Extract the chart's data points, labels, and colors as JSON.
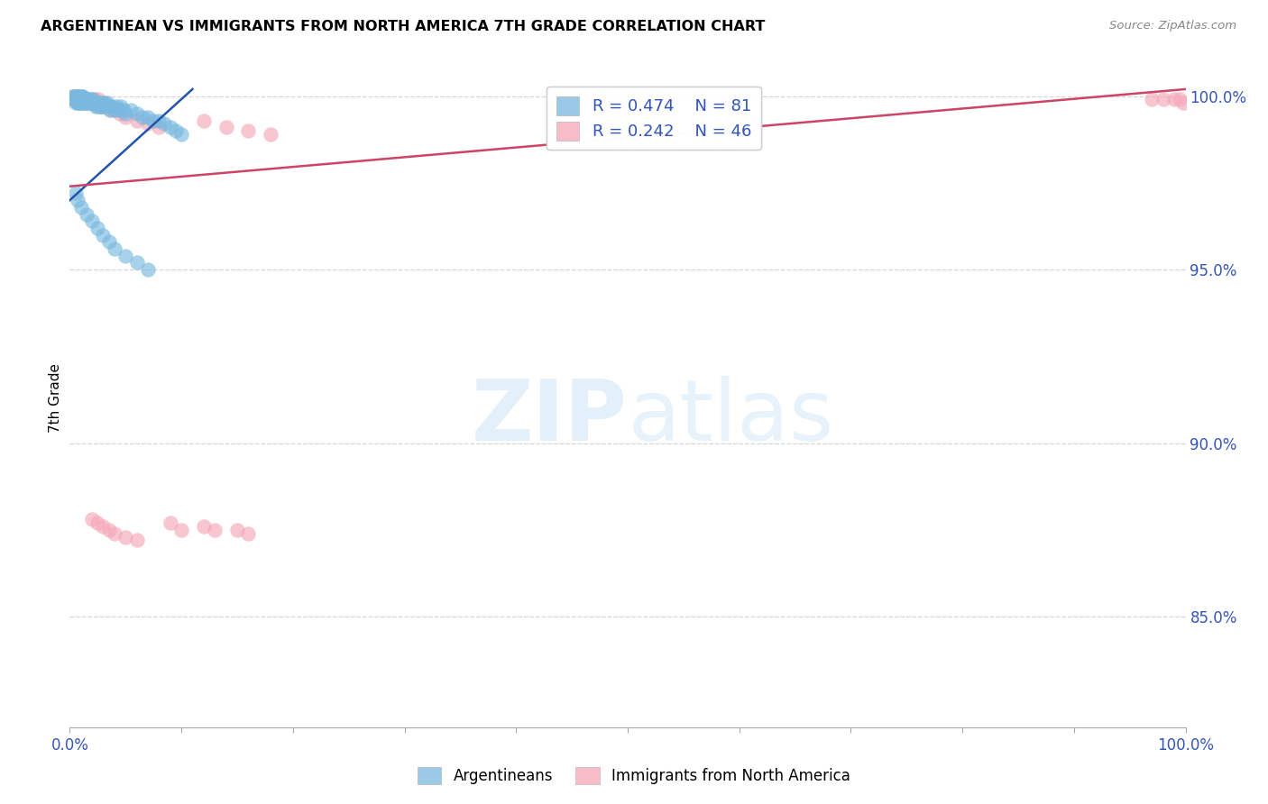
{
  "title": "ARGENTINEAN VS IMMIGRANTS FROM NORTH AMERICA 7TH GRADE CORRELATION CHART",
  "source": "Source: ZipAtlas.com",
  "ylabel": "7th Grade",
  "xlim": [
    0.0,
    1.0
  ],
  "ylim": [
    0.818,
    1.008
  ],
  "yticks": [
    0.85,
    0.9,
    0.95,
    1.0
  ],
  "ytick_labels": [
    "85.0%",
    "90.0%",
    "95.0%",
    "100.0%"
  ],
  "xtick_vals": [
    0.0,
    0.1,
    0.2,
    0.3,
    0.4,
    0.5,
    0.6,
    0.7,
    0.8,
    0.9,
    1.0
  ],
  "xtick_labels": [
    "0.0%",
    "",
    "",
    "",
    "",
    "",
    "",
    "",
    "",
    "",
    "100.0%"
  ],
  "blue_color": "#7ab9e0",
  "pink_color": "#f5a8b8",
  "blue_line_color": "#2255aa",
  "pink_line_color": "#cc4466",
  "grid_color": "#cccccc",
  "blue_line_x": [
    0.0,
    0.11
  ],
  "blue_line_y": [
    0.97,
    1.002
  ],
  "pink_line_x": [
    0.0,
    1.0
  ],
  "pink_line_y": [
    0.974,
    1.002
  ],
  "blue_x": [
    0.002,
    0.003,
    0.004,
    0.004,
    0.005,
    0.005,
    0.005,
    0.006,
    0.006,
    0.007,
    0.007,
    0.007,
    0.008,
    0.008,
    0.008,
    0.009,
    0.009,
    0.009,
    0.01,
    0.01,
    0.01,
    0.011,
    0.011,
    0.012,
    0.012,
    0.013,
    0.013,
    0.014,
    0.014,
    0.015,
    0.015,
    0.016,
    0.016,
    0.017,
    0.018,
    0.019,
    0.02,
    0.021,
    0.022,
    0.023,
    0.024,
    0.025,
    0.026,
    0.027,
    0.028,
    0.029,
    0.03,
    0.031,
    0.032,
    0.034,
    0.035,
    0.036,
    0.038,
    0.04,
    0.042,
    0.044,
    0.046,
    0.048,
    0.05,
    0.055,
    0.06,
    0.065,
    0.07,
    0.075,
    0.08,
    0.085,
    0.09,
    0.095,
    0.1,
    0.005,
    0.007,
    0.01,
    0.015,
    0.02,
    0.025,
    0.03,
    0.035,
    0.04,
    0.05,
    0.06,
    0.07
  ],
  "blue_y": [
    1.0,
    0.999,
    1.0,
    0.999,
    1.0,
    0.999,
    0.998,
    1.0,
    0.999,
    1.0,
    0.999,
    0.998,
    1.0,
    0.999,
    0.998,
    1.0,
    0.999,
    0.998,
    1.0,
    0.999,
    0.998,
    1.0,
    0.999,
    1.0,
    0.999,
    0.999,
    0.998,
    0.999,
    0.998,
    0.999,
    0.998,
    0.999,
    0.998,
    0.999,
    0.998,
    0.999,
    0.998,
    0.999,
    0.998,
    0.997,
    0.998,
    0.997,
    0.998,
    0.997,
    0.997,
    0.998,
    0.997,
    0.998,
    0.997,
    0.998,
    0.997,
    0.996,
    0.997,
    0.996,
    0.997,
    0.996,
    0.997,
    0.996,
    0.995,
    0.996,
    0.995,
    0.994,
    0.994,
    0.993,
    0.993,
    0.992,
    0.991,
    0.99,
    0.989,
    0.972,
    0.97,
    0.968,
    0.966,
    0.964,
    0.962,
    0.96,
    0.958,
    0.956,
    0.954,
    0.952,
    0.95
  ],
  "pink_x": [
    0.003,
    0.005,
    0.006,
    0.008,
    0.01,
    0.011,
    0.013,
    0.015,
    0.016,
    0.018,
    0.02,
    0.022,
    0.024,
    0.026,
    0.028,
    0.03,
    0.033,
    0.036,
    0.04,
    0.045,
    0.05,
    0.06,
    0.07,
    0.08,
    0.09,
    0.1,
    0.12,
    0.14,
    0.16,
    0.18,
    0.02,
    0.025,
    0.03,
    0.035,
    0.04,
    0.05,
    0.06,
    0.97,
    0.98,
    0.99,
    0.995,
    0.998,
    0.15,
    0.16,
    0.12,
    0.13
  ],
  "pink_y": [
    1.0,
    0.999,
    1.0,
    0.999,
    1.0,
    0.999,
    0.998,
    0.999,
    0.998,
    0.999,
    0.998,
    0.999,
    0.998,
    0.999,
    0.997,
    0.998,
    0.997,
    0.996,
    0.996,
    0.995,
    0.994,
    0.993,
    0.992,
    0.991,
    0.877,
    0.875,
    0.993,
    0.991,
    0.99,
    0.989,
    0.878,
    0.877,
    0.876,
    0.875,
    0.874,
    0.873,
    0.872,
    0.999,
    0.999,
    0.999,
    0.999,
    0.998,
    0.875,
    0.874,
    0.876,
    0.875
  ]
}
